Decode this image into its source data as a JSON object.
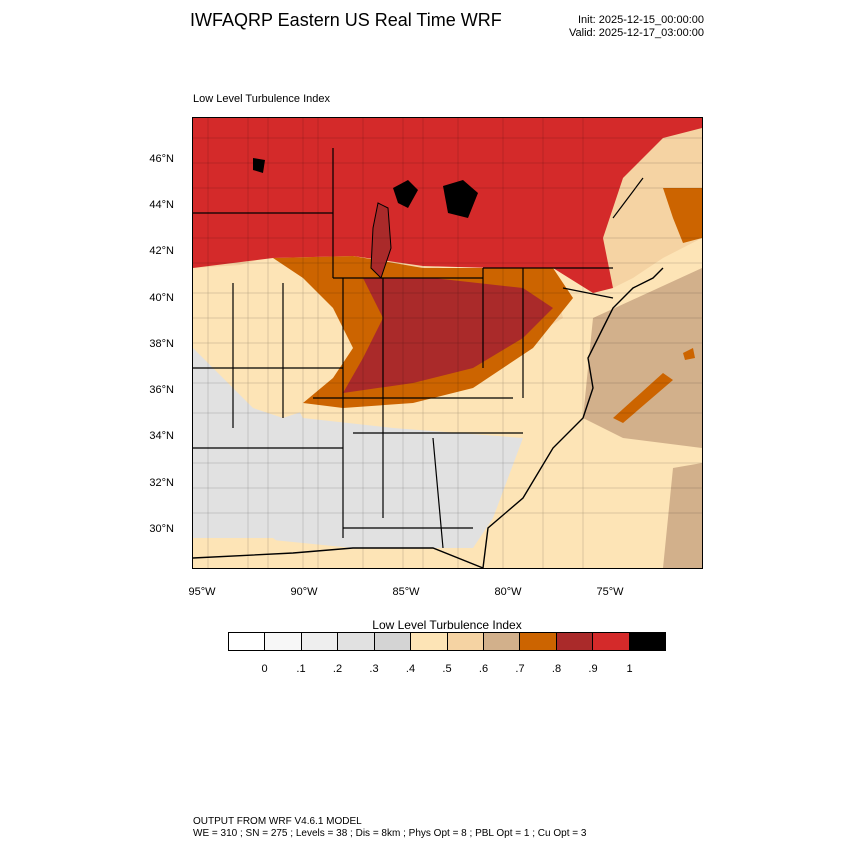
{
  "header": {
    "title": "IWFAQRP Eastern US Real Time WRF",
    "init": "Init: 2025-12-15_00:00:00",
    "valid": "Valid: 2025-12-17_03:00:00"
  },
  "panel": {
    "title": "Low Level Turbulence Index",
    "lat_labels": [
      "46°N",
      "44°N",
      "42°N",
      "40°N",
      "38°N",
      "36°N",
      "34°N",
      "32°N",
      "30°N"
    ],
    "lon_labels": [
      "95°W",
      "90°W",
      "85°W",
      "80°W",
      "75°W"
    ]
  },
  "colorbar": {
    "title": "Low Level Turbulence Index",
    "colors": [
      "#ffffff",
      "#f7f7f7",
      "#eeeeee",
      "#e1e1e1",
      "#d4d4d4",
      "#fde4b6",
      "#f5d3a3",
      "#d2b08b",
      "#cc6400",
      "#aa2a2a",
      "#d42a2a",
      "#000000"
    ],
    "tick_labels": [
      "0",
      ".1",
      ".2",
      ".3",
      ".4",
      ".5",
      ".6",
      ".7",
      ".8",
      ".9",
      "1"
    ]
  },
  "footer": {
    "line1": "OUTPUT FROM WRF V4.6.1 MODEL",
    "line2": "WE = 310 ; SN = 275 ; Levels = 38 ; Dis = 8km ; Phys Opt = 8 ; PBL Opt = 1 ; Cu Opt = 3"
  }
}
